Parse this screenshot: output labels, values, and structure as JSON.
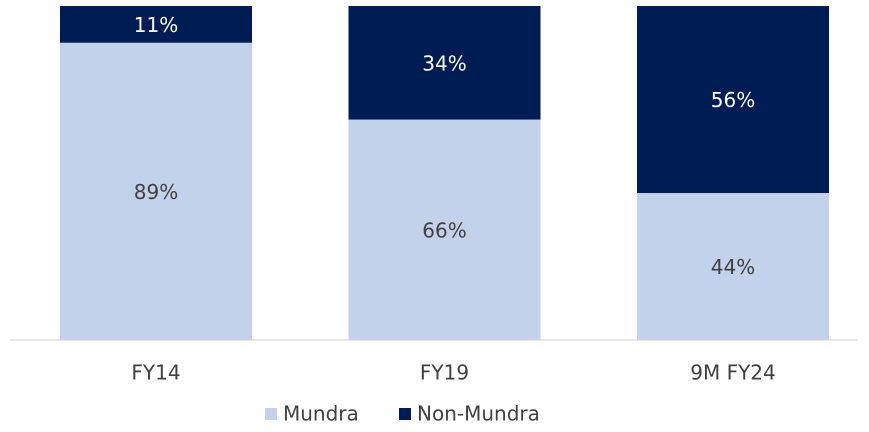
{
  "chart_data": {
    "type": "stacked-bar",
    "categories": [
      "FY14",
      "FY19",
      "9M FY24"
    ],
    "series": [
      {
        "name": "Mundra",
        "color": "#c3d1ea",
        "values": [
          89,
          66,
          44
        ],
        "value_labels": [
          "89%",
          "66%",
          "44%"
        ]
      },
      {
        "name": "Non-Mundra",
        "color": "#001c54",
        "values": [
          11,
          34,
          56
        ],
        "value_labels": [
          "11%",
          "34%",
          "56%"
        ]
      }
    ],
    "ylim": [
      0,
      100
    ],
    "legend": "bottom"
  }
}
